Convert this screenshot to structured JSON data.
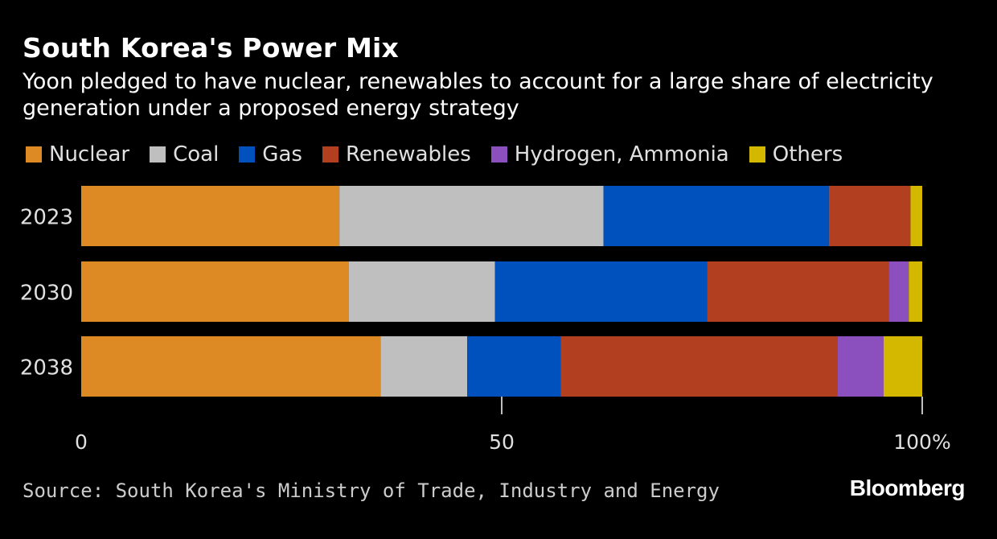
{
  "header": {
    "title": "South Korea's Power Mix",
    "subtitle": "Yoon pledged to have nuclear, renewables to account for a large share of electricity generation under a proposed energy strategy"
  },
  "footer": {
    "source": "Source: South Korea's Ministry of Trade, Industry and Energy",
    "brand": "Bloomberg"
  },
  "chart_data": {
    "type": "bar",
    "orientation": "horizontal",
    "stacked": true,
    "title": "South Korea's Power Mix",
    "xlabel": "",
    "ylabel": "",
    "xlim": [
      0,
      100
    ],
    "xticks": [
      0,
      50,
      100
    ],
    "xtick_labels": [
      "0",
      "50",
      "100%"
    ],
    "grid": false,
    "legend_position": "top",
    "categories": [
      "2023",
      "2030",
      "2038"
    ],
    "series": [
      {
        "name": "Nuclear",
        "color": "#dd8a24",
        "values": [
          30.7,
          31.8,
          35.6
        ]
      },
      {
        "name": "Coal",
        "color": "#bfbfbf",
        "values": [
          31.4,
          17.4,
          10.3
        ]
      },
      {
        "name": "Gas",
        "color": "#0050bd",
        "values": [
          26.8,
          25.2,
          11.1
        ]
      },
      {
        "name": "Renewables",
        "color": "#b23f1f",
        "values": [
          9.7,
          21.6,
          32.9
        ]
      },
      {
        "name": "Hydrogen, Ammonia",
        "color": "#8c4fbe",
        "values": [
          0,
          2.4,
          5.5
        ]
      },
      {
        "name": "Others",
        "color": "#d4b800",
        "values": [
          1.4,
          1.6,
          4.6
        ]
      }
    ]
  }
}
